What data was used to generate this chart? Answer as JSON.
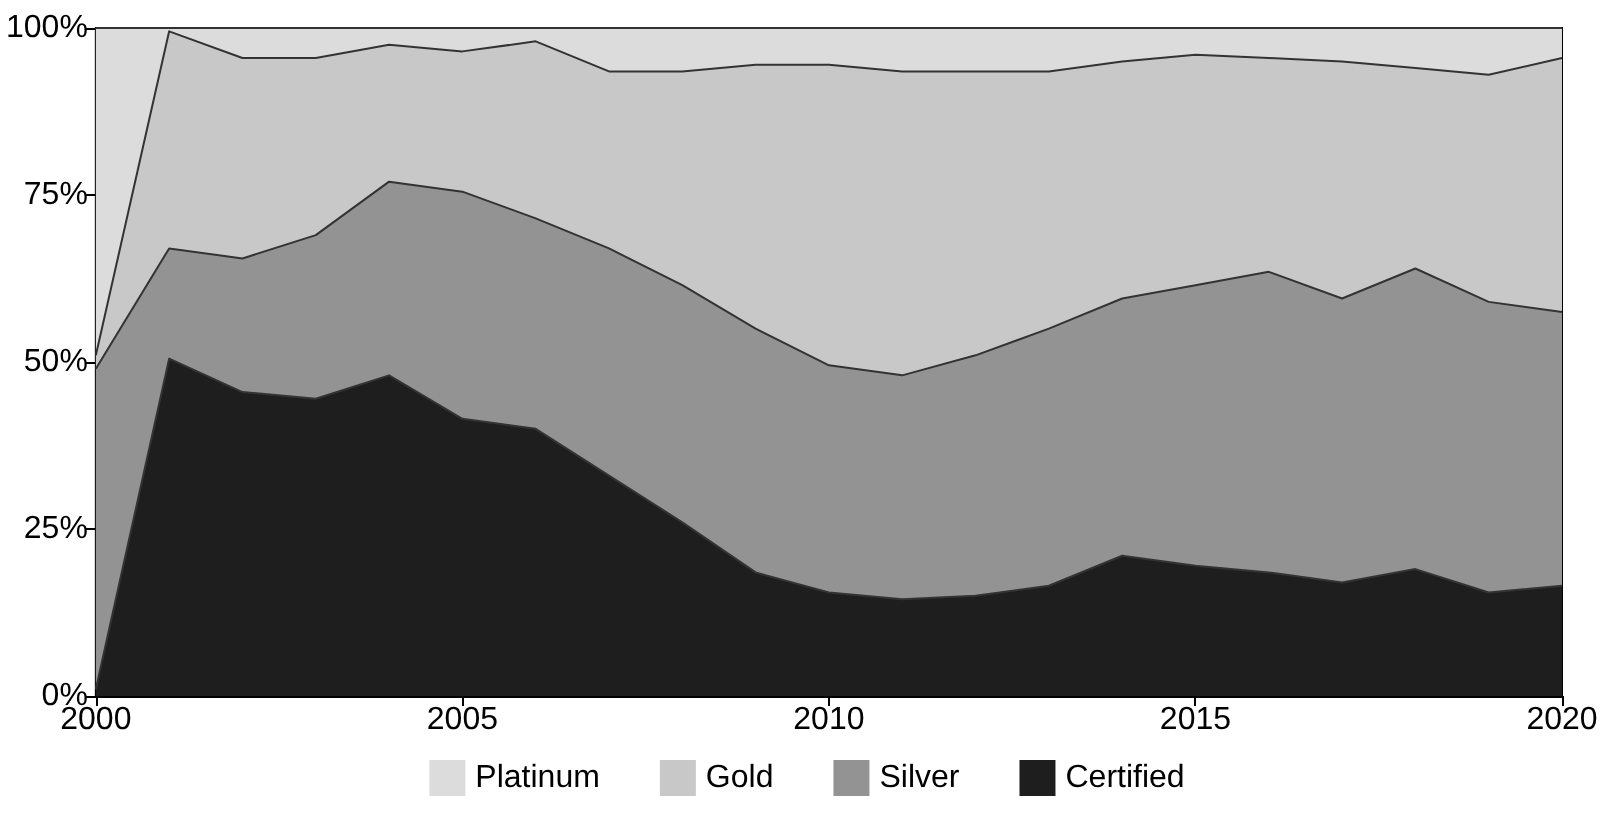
{
  "chart_data": {
    "type": "area",
    "stacked": true,
    "x": [
      2000,
      2001,
      2002,
      2003,
      2004,
      2005,
      2006,
      2007,
      2008,
      2009,
      2010,
      2011,
      2012,
      2013,
      2014,
      2015,
      2016,
      2017,
      2018,
      2019,
      2020
    ],
    "series": [
      {
        "name": "Certified",
        "color": "#1e1e1e",
        "values": [
          1,
          50.5,
          45.5,
          44.5,
          48,
          41.5,
          40,
          33,
          26,
          18.5,
          15.5,
          14.5,
          15,
          16.5,
          21,
          19.5,
          18.5,
          17,
          19,
          15.5,
          16.5
        ]
      },
      {
        "name": "Silver",
        "color": "#939393",
        "values": [
          48,
          16.5,
          20,
          24.5,
          29,
          34,
          31.5,
          34,
          35.5,
          36.5,
          34,
          33.5,
          36,
          38.5,
          38.5,
          42,
          45,
          42.5,
          45,
          43.5,
          41
        ]
      },
      {
        "name": "Gold",
        "color": "#c8c8c8",
        "values": [
          2,
          32.5,
          30,
          26.5,
          20.5,
          21,
          26.5,
          26.5,
          32,
          39.5,
          45,
          45.5,
          42.5,
          38.5,
          35.5,
          34.5,
          32,
          35.5,
          30,
          34,
          38
        ]
      },
      {
        "name": "Platinum",
        "color": "#dcdcdc",
        "values": [
          49,
          0.5,
          4.5,
          4.5,
          2.5,
          3.5,
          2,
          6.5,
          6.5,
          5.5,
          5.5,
          6.5,
          6.5,
          6.5,
          5,
          4,
          4.5,
          5,
          6,
          7,
          4.5
        ]
      }
    ],
    "xlim": [
      2000,
      2020
    ],
    "xticks": [
      2000,
      2005,
      2010,
      2015,
      2020
    ],
    "ylim": [
      0,
      100
    ],
    "yticks": [
      {
        "value": 0,
        "label": "0%"
      },
      {
        "value": 25,
        "label": "25%"
      },
      {
        "value": 50,
        "label": "50%"
      },
      {
        "value": 75,
        "label": "75%"
      },
      {
        "value": 100,
        "label": "100%"
      }
    ],
    "grid": false,
    "legend": "bottom"
  }
}
